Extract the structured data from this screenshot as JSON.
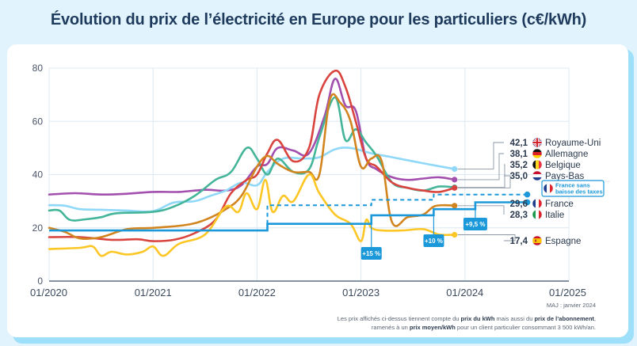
{
  "title": "Évolution du prix de l’électricité en Europe pour les particuliers (c€/kWh)",
  "footer": {
    "maj": "MAJ : janvier 2024",
    "note_line1_parts": [
      "Les prix affichés ci-dessus tiennent compte du ",
      "prix du kWh",
      " mais aussi du ",
      "prix de l’abonnement",
      ","
    ],
    "note_line2_parts": [
      "ramenés à un ",
      "prix moyen/kWh",
      " pour un client particulier consommant 3 500 kWh/an."
    ]
  },
  "colors": {
    "uk": "#8fd8f8",
    "germany": "#a24fae",
    "belgium": "#45b59a",
    "netherlands": "#d9443f",
    "france": "#1a98d9",
    "italy": "#d2851f",
    "spain": "#fcc624",
    "grid": "#dde8f2",
    "axis": "#5b6f86",
    "leader": "#8a96a3"
  },
  "chart_data": {
    "type": "line",
    "title": "Évolution du prix de l’électricité en Europe pour les particuliers (c€/kWh)",
    "xlabel": "",
    "ylabel": "c€/kWh",
    "x_ticks": [
      "01/2020",
      "01/2021",
      "01/2022",
      "01/2023",
      "01/2024",
      "01/2025"
    ],
    "x_range_years": [
      2020.0,
      2025.0
    ],
    "y_ticks": [
      0,
      20,
      40,
      60,
      80
    ],
    "ylim": [
      0,
      80
    ],
    "grid": true,
    "x_unit": "decimal year",
    "series": [
      {
        "key": "germany",
        "name": "Allemagne",
        "final_label": "38,1",
        "flag": "de",
        "x": [
          2020.0,
          2020.25,
          2020.5,
          2020.75,
          2021.0,
          2021.25,
          2021.5,
          2021.7,
          2021.85,
          2022.0,
          2022.1,
          2022.2,
          2022.35,
          2022.5,
          2022.65,
          2022.75,
          2022.85,
          2022.95,
          2023.05,
          2023.15,
          2023.3,
          2023.45,
          2023.6,
          2023.75,
          2023.9
        ],
        "y": [
          32.5,
          33,
          32.5,
          32.8,
          33.5,
          33.5,
          34.3,
          34,
          36,
          43,
          44,
          50,
          49,
          48,
          62,
          76,
          66,
          64,
          46,
          42,
          39,
          38,
          38.5,
          39,
          38.1
        ]
      },
      {
        "key": "uk",
        "name": "Royaume-Uni",
        "final_label": "42,1",
        "flag": "gb",
        "x": [
          2020.0,
          2020.15,
          2020.3,
          2020.5,
          2020.75,
          2021.0,
          2021.2,
          2021.4,
          2021.55,
          2021.7,
          2021.85,
          2022.0,
          2022.1,
          2022.25,
          2022.45,
          2022.6,
          2022.75,
          2022.9,
          2023.1,
          2023.3,
          2023.5,
          2023.7,
          2023.9
        ],
        "y": [
          28.5,
          28.3,
          27,
          26.8,
          26.5,
          26.3,
          29.5,
          30,
          32,
          34,
          37,
          36,
          41,
          46,
          46,
          46.5,
          49.5,
          50,
          48,
          46.5,
          45,
          43.5,
          42.1
        ]
      },
      {
        "key": "belgium",
        "name": "Belgique",
        "final_label": "35,2",
        "flag": "be",
        "x": [
          2020.0,
          2020.1,
          2020.2,
          2020.35,
          2020.5,
          2020.65,
          2021.0,
          2021.2,
          2021.4,
          2021.6,
          2021.75,
          2021.9,
          2022.0,
          2022.1,
          2022.2,
          2022.35,
          2022.5,
          2022.6,
          2022.75,
          2022.85,
          2022.95,
          2023.05,
          2023.15,
          2023.3,
          2023.45,
          2023.6,
          2023.75,
          2023.9
        ],
        "y": [
          26.5,
          26.5,
          23,
          23.2,
          24,
          25.5,
          26,
          28,
          32,
          38,
          41,
          50,
          46,
          40,
          46,
          41,
          42,
          54,
          69,
          53,
          57,
          52,
          47,
          37,
          35,
          34,
          35.5,
          35.2
        ]
      },
      {
        "key": "netherlands",
        "name": "Pays-Bas",
        "final_label": "35,0",
        "flag": "nl",
        "x": [
          2020.0,
          2020.3,
          2020.6,
          2020.85,
          2021.0,
          2021.2,
          2021.4,
          2021.6,
          2021.75,
          2021.9,
          2022.0,
          2022.1,
          2022.2,
          2022.35,
          2022.5,
          2022.6,
          2022.75,
          2022.85,
          2022.95,
          2023.05,
          2023.15,
          2023.3,
          2023.45,
          2023.6,
          2023.75,
          2023.9
        ],
        "y": [
          16.5,
          16.5,
          15.5,
          15.7,
          15,
          15.5,
          18,
          23,
          33,
          38,
          40,
          48,
          53,
          45,
          50,
          70,
          79,
          73,
          60,
          46,
          43,
          37,
          35,
          34,
          33.5,
          35.0
        ]
      },
      {
        "key": "italy",
        "name": "Italie",
        "final_label": "28,3",
        "flag": "it",
        "x": [
          2020.0,
          2020.15,
          2020.3,
          2020.5,
          2020.75,
          2021.0,
          2021.3,
          2021.5,
          2021.7,
          2021.85,
          2022.0,
          2022.1,
          2022.2,
          2022.35,
          2022.5,
          2022.6,
          2022.7,
          2022.8,
          2022.9,
          2023.0,
          2023.1,
          2023.2,
          2023.3,
          2023.45,
          2023.6,
          2023.7,
          2023.8,
          2023.9
        ],
        "y": [
          20,
          18.5,
          16,
          16.5,
          19.5,
          20,
          21,
          23,
          27,
          32,
          43,
          47,
          44,
          41,
          41,
          40,
          68,
          67,
          60,
          43,
          46,
          45,
          22,
          24,
          25,
          28,
          28.5,
          28.3
        ]
      },
      {
        "key": "spain",
        "name": "Espagne",
        "final_label": "17,4",
        "flag": "es",
        "x": [
          2020.0,
          2020.3,
          2020.42,
          2020.5,
          2020.6,
          2020.75,
          2020.9,
          2021.0,
          2021.1,
          2021.25,
          2021.5,
          2021.7,
          2021.82,
          2021.9,
          2022.0,
          2022.08,
          2022.15,
          2022.25,
          2022.35,
          2022.5,
          2022.6,
          2022.75,
          2022.9,
          2023.0,
          2023.05,
          2023.1,
          2023.2,
          2023.4,
          2023.6,
          2023.75,
          2023.9
        ],
        "y": [
          12,
          12.5,
          13,
          9.5,
          11,
          10,
          11,
          13,
          9.5,
          14,
          17.5,
          28,
          26,
          33,
          27,
          38,
          26,
          32,
          30,
          40,
          33,
          25,
          21.5,
          15,
          23,
          20,
          19,
          19,
          19.5,
          17.5,
          17.4
        ]
      }
    ],
    "france": {
      "name": "France",
      "final_label": "29,6",
      "flag": "fr",
      "step_x": [
        2020.0,
        2022.1,
        2023.1,
        2023.7,
        2024.1,
        2024.6
      ],
      "step_y": [
        19,
        21.5,
        24.7,
        27,
        29.6,
        29.6
      ],
      "endpoint_x": 2024.6,
      "without_tax_shield": {
        "label_line1": "France sans",
        "label_line2": "baisse des taxes",
        "step_x": [
          2022.1,
          2023.1,
          2023.7,
          2024.6
        ],
        "step_y": [
          28.5,
          30.5,
          32.5,
          32.5
        ]
      },
      "increase_annotations": [
        {
          "label": "+15 %",
          "x": 2023.1
        },
        {
          "label": "+10 %",
          "x": 2023.7
        },
        {
          "label": "+9,5 %",
          "x": 2024.1
        }
      ]
    }
  }
}
